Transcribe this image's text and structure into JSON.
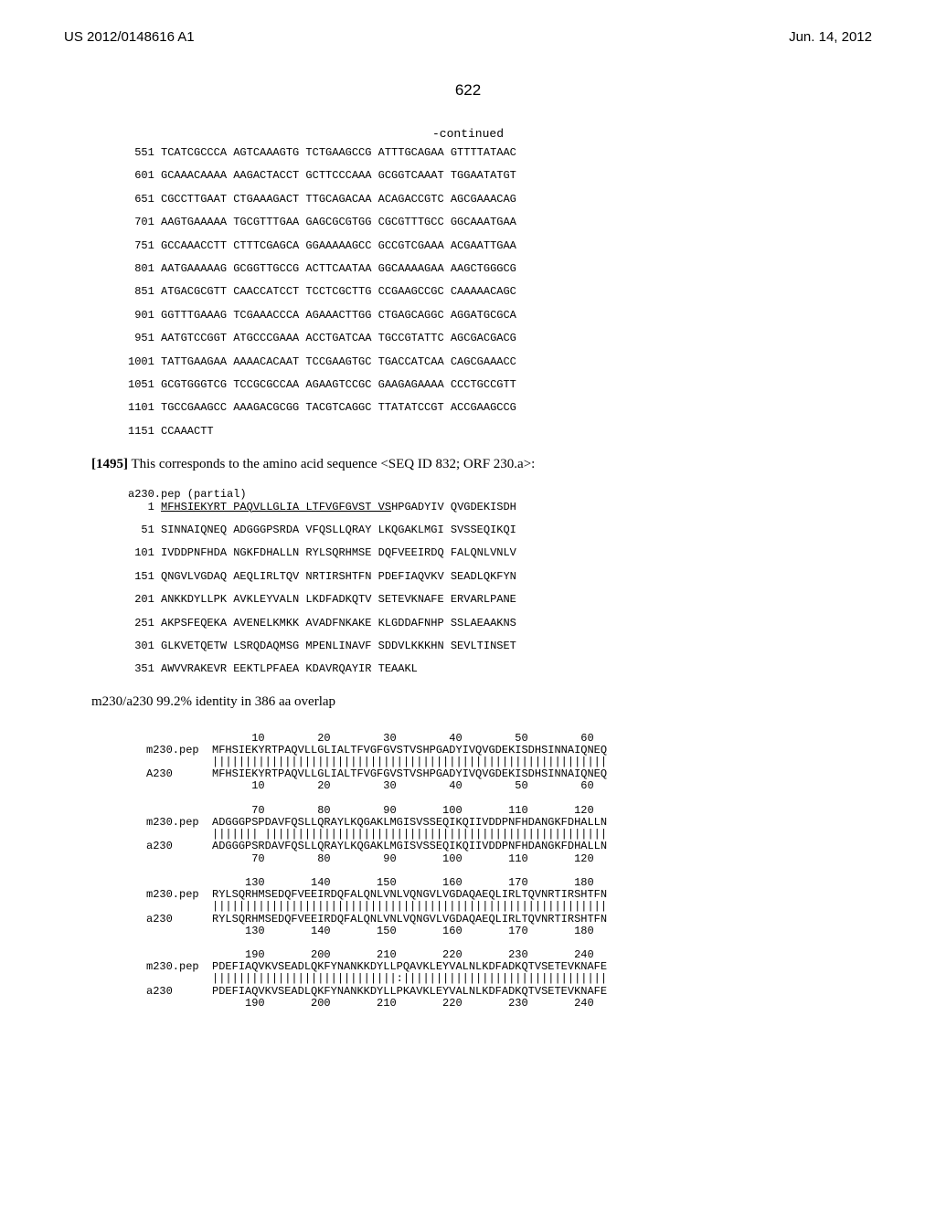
{
  "header": {
    "left": "US 2012/0148616 A1",
    "right": "Jun. 14, 2012"
  },
  "page_number": "622",
  "continued_label": "-continued",
  "dna_sequence": [
    " 551 TCATCGCCCA AGTCAAAGTG TCTGAAGCCG ATTTGCAGAA GTTTTATAAC",
    " 601 GCAAACAAAA AAGACTACCT GCTTCCCAAA GCGGTCAAAT TGGAATATGT",
    " 651 CGCCTTGAAT CTGAAAGACT TTGCAGACAA ACAGACCGTC AGCGAAACAG",
    " 701 AAGTGAAAAA TGCGTTTGAA GAGCGCGTGG CGCGTTTGCC GGCAAATGAA",
    " 751 GCCAAACCTT CTTTCGAGCA GGAAAAAGCC GCCGTCGAAA ACGAATTGAA",
    " 801 AATGAAAAAG GCGGTTGCCG ACTTCAATAA GGCAAAAGAA AAGCTGGGCG",
    " 851 ATGACGCGTT CAACCATCCT TCCTCGCTTG CCGAAGCCGC CAAAAACAGC",
    " 901 GGTTTGAAAG TCGAAACCCA AGAAACTTGG CTGAGCAGGC AGGATGCGCA",
    " 951 AATGTCCGGT ATGCCCGAAA ACCTGATCAA TGCCGTATTC AGCGACGACG",
    "1001 TATTGAAGAA AAAACACAAT TCCGAAGTGC TGACCATCAA CAGCGAAACC",
    "1051 GCGTGGGTCG TCCGCGCCAA AGAAGTCCGC GAAGAGAAAA CCCTGCCGTT",
    "1101 TGCCGAAGCC AAAGACGCGG TACGTCAGGC TTATATCCGT ACCGAAGCCG",
    "1151 CCAAACTT"
  ],
  "paragraph_1495": {
    "bold": "[1495]",
    "text": "   This corresponds to the amino acid sequence <SEQ ID 832; ORF 230.a>:"
  },
  "partial_label": "a230.pep (partial)",
  "partial_leader_underline": "MFHSIEKYRT PAQVLLGLIA LTFVGFGVST VS",
  "partial_first_rest": "HPGADYIV QVGDEKISDH",
  "partial_first_num": "   1 ",
  "aa_sequence": [
    "  51 SINNAIQNEQ ADGGGPSRDA VFQSLLQRAY LKQGAKLMGI SVSSEQIKQI",
    " 101 IVDDPNFHDA NGKFDHALLN RYLSQRHMSE DQFVEEIRDQ FALQNLVNLV",
    " 151 QNGVLVGDAQ AEQLIRLTQV NRTIRSHTFN PDEFIAQVKV SEADLQKFYN",
    " 201 ANKKDYLLPK AVKLEYVALN LKDFADKQTV SETEVKNAFE ERVARLPANE",
    " 251 AKPSFEQEKA AVENELKMKK AVADFNKAKE KLGDDAFNHP SSLAEAAKNS",
    " 301 GLKVETQETW LSRQDAQMSG MPENLINAVF SDDVLKKKHN SEVLTINSET",
    " 351 AWVVRAKEVR EEKTLPFAEA KDAVRQAYIR TEAAKL"
  ],
  "identity_text": "m230/a230 99.2% identity in 386 aa overlap",
  "alignment": [
    "                10        20        30        40        50        60",
    "m230.pep  MFHSIEKYRTPAQVLLGLIALTFVGFGVSTVSHPGADYIVQVGDEKISDHSINNAIQNEQ",
    "          ||||||||||||||||||||||||||||||||||||||||||||||||||||||||||||",
    "A230      MFHSIEKYRTPAQVLLGLIALTFVGFGVSTVSHPGADYIVQVGDEKISDHSINNAIQNEQ",
    "                10        20        30        40        50        60",
    "",
    "                70        80        90       100       110       120",
    "m230.pep  ADGGGPSPDAVFQSLLQRAYLKQGAKLMGISVSSEQIKQIIVDDPNFHDANGKFDHALLN",
    "          ||||||| ||||||||||||||||||||||||||||||||||||||||||||||||||||",
    "a230      ADGGGPSRDAVFQSLLQRAYLKQGAKLMGISVSSEQIKQIIVDDPNFHDANGKFDHALLN",
    "                70        80        90       100       110       120",
    "",
    "               130       140       150       160       170       180",
    "m230.pep  RYLSQRHMSEDQFVEEIRDQFALQNLVNLVQNGVLVGDAQAEQLIRLTQVNRTIRSHTFN",
    "          ||||||||||||||||||||||||||||||||||||||||||||||||||||||||||||",
    "a230      RYLSQRHMSEDQFVEEIRDQFALQNLVNLVQNGVLVGDAQAEQLIRLTQVNRTIRSHTFN",
    "               130       140       150       160       170       180",
    "",
    "               190       200       210       220       230       240",
    "m230.pep  PDEFIAQVKVSEADLQKFYNANKKDYLLPQAVKLEYVALNLKDFADKQTVSETEVKNAFE",
    "          ||||||||||||||||||||||||||||:|||||||||||||||||||||||||||||||",
    "a230      PDEFIAQVKVSEADLQKFYNANKKDYLLPKAVKLEYVALNLKDFADKQTVSETEVKNAFE",
    "               190       200       210       220       230       240"
  ],
  "colors": {
    "text": "#000000",
    "background": "#ffffff"
  },
  "fonts": {
    "body": "Arial, sans-serif",
    "mono": "'Courier New', monospace",
    "serif": "'Times New Roman', serif"
  }
}
